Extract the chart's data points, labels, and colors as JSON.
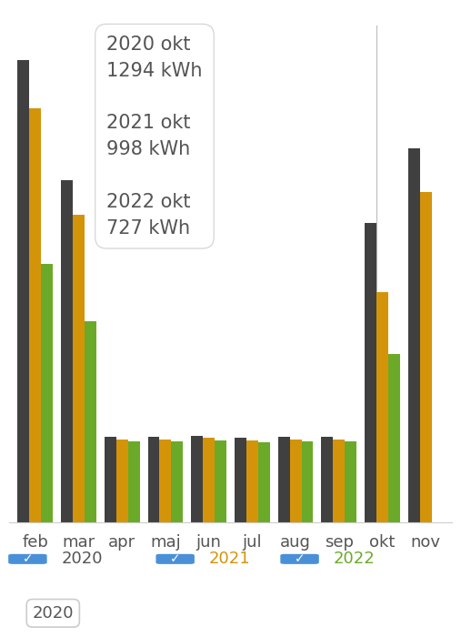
{
  "months": [
    "feb",
    "mar",
    "apr",
    "maj",
    "jun",
    "jul",
    "aug",
    "sep",
    "okt",
    "nov"
  ],
  "year_2020": [
    2000,
    1480,
    370,
    370,
    375,
    365,
    370,
    370,
    1294,
    1620
  ],
  "year_2021": [
    1790,
    1330,
    360,
    360,
    365,
    355,
    360,
    360,
    998,
    1430
  ],
  "year_2022": [
    1120,
    870,
    350,
    350,
    355,
    345,
    350,
    350,
    727,
    null
  ],
  "color_2020": "#404040",
  "color_2021": "#D4940A",
  "color_2022": "#6BAA28",
  "bar_width": 0.27,
  "ylim": [
    0,
    2150
  ],
  "background_color": "#ffffff",
  "tooltip_text": "2020 okt\n1294 kWh\n\n2021 okt\n998 kWh\n\n2022 okt\n727 kWh",
  "grid_color": "#e8e8e8",
  "grid_linewidth": 0.8,
  "check_color": "#4A90D9",
  "label_color": "#555555",
  "okt_line_color": "#bbbbbb",
  "tooltip_fontsize": 15,
  "axis_fontsize": 13
}
